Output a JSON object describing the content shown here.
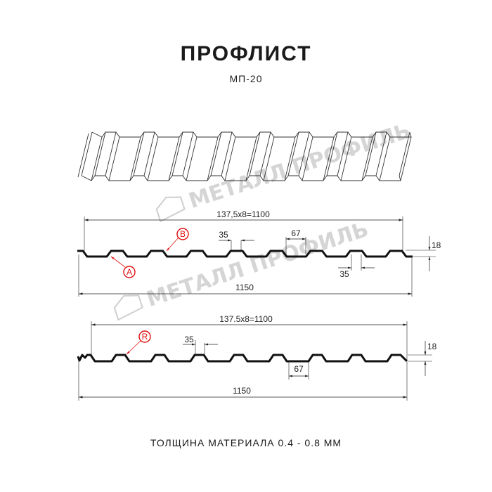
{
  "header": {
    "title": "ПРОФЛИСТ",
    "subtitle": "МП-20"
  },
  "watermark": {
    "text": "МЕТАЛЛ ПРОФИЛЬ"
  },
  "profile_1": {
    "pitch_label": "137,5x8=1100",
    "width_label": "1150",
    "top_flat_label": "35",
    "rib_label": "67",
    "bottom_flat_label": "35",
    "height_label": "18",
    "marker_a": "A",
    "marker_b": "B"
  },
  "profile_2": {
    "pitch_label": "137.5x8=1100",
    "width_label": "1150",
    "top_flat_label": "35",
    "rib_label": "67",
    "height_label": "18",
    "marker_r": "R"
  },
  "footer": {
    "thickness": "ТОЛЩИНА МАТЕРИАЛА 0.4 - 0.8 ММ"
  },
  "colors": {
    "line": "#111111",
    "marker": "#e01010",
    "watermark": "#c8c8c8"
  }
}
